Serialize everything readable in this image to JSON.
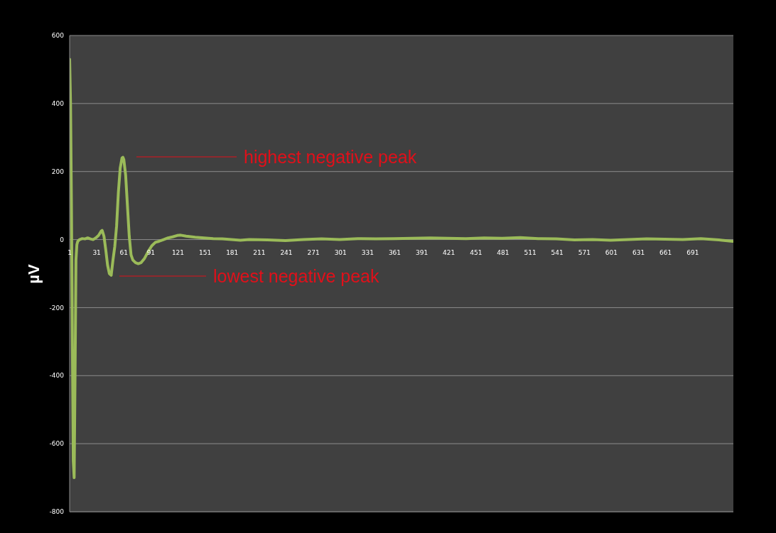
{
  "chart_data": {
    "type": "line",
    "ylabel": "µV",
    "x": [
      1,
      2,
      3,
      4,
      5,
      6,
      7,
      8,
      9,
      10,
      12,
      15,
      18,
      21,
      24,
      27,
      30,
      33,
      36,
      37,
      39,
      41,
      43,
      45,
      47,
      49,
      51,
      53,
      55,
      57,
      59,
      60,
      61,
      63,
      65,
      67,
      69,
      71,
      74,
      77,
      80,
      84,
      88,
      92,
      96,
      100,
      105,
      110,
      115,
      120,
      124,
      130,
      140,
      150,
      160,
      170,
      180,
      190,
      200,
      220,
      240,
      260,
      280,
      300,
      320,
      340,
      360,
      380,
      400,
      420,
      440,
      460,
      480,
      500,
      520,
      540,
      560,
      580,
      600,
      620,
      640,
      660,
      680,
      700,
      720,
      735
    ],
    "series": [
      {
        "color": "#9bbb59",
        "values": [
          530,
          400,
          100,
          -300,
          -650,
          -700,
          -400,
          -60,
          -15,
          -5,
          0,
          3,
          2,
          5,
          2,
          0,
          5,
          12,
          25,
          27,
          10,
          -30,
          -75,
          -100,
          -105,
          -60,
          -20,
          40,
          140,
          210,
          240,
          242,
          235,
          190,
          100,
          10,
          -45,
          -60,
          -68,
          -71,
          -68,
          -55,
          -35,
          -18,
          -8,
          -5,
          0,
          5,
          8,
          12,
          13,
          10,
          7,
          5,
          3,
          2,
          0,
          -2,
          0,
          -1,
          -3,
          0,
          2,
          0,
          3,
          2,
          3,
          4,
          5,
          4,
          3,
          5,
          4,
          6,
          3,
          2,
          -1,
          0,
          -2,
          0,
          2,
          1,
          0,
          3,
          -1,
          -5
        ]
      }
    ],
    "xlim": [
      1,
      736
    ],
    "xticks": [
      1,
      31,
      61,
      91,
      121,
      151,
      181,
      211,
      241,
      271,
      301,
      331,
      361,
      391,
      421,
      451,
      481,
      511,
      541,
      571,
      601,
      631,
      661,
      691
    ],
    "ylim": [
      -800,
      600
    ],
    "yticks": [
      -800,
      -600,
      -400,
      -200,
      0,
      200,
      400,
      600
    ],
    "grid": "y",
    "marker": "none",
    "line_style": "solid",
    "annotations": [
      "highest negative peak",
      "lowest negative peak"
    ]
  }
}
